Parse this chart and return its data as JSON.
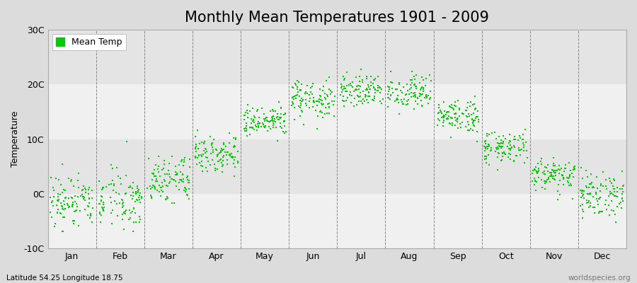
{
  "title": "Monthly Mean Temperatures 1901 - 2009",
  "ylabel": "Temperature",
  "xlabel_labels": [
    "Jan",
    "Feb",
    "Mar",
    "Apr",
    "May",
    "Jun",
    "Jul",
    "Aug",
    "Sep",
    "Oct",
    "Nov",
    "Dec"
  ],
  "vline_positions": [
    2,
    3,
    4,
    5,
    6,
    7,
    8,
    9,
    10,
    11,
    12
  ],
  "ylim": [
    -10,
    30
  ],
  "xlim": [
    1,
    13
  ],
  "ytick_labels": [
    "-10C",
    "0C",
    "10C",
    "20C",
    "30C"
  ],
  "ytick_values": [
    -10,
    0,
    10,
    20,
    30
  ],
  "dot_color": "#00cc00",
  "dot_size": 3,
  "legend_label": "Mean Temp",
  "bg_color": "#dcdcdc",
  "plot_bg_color_light": "#f0f0f0",
  "plot_bg_color_dark": "#e4e4e4",
  "footnote_left": "Latitude 54.25 Longitude 18.75",
  "footnote_right": "worldspecies.org",
  "title_fontsize": 15,
  "axis_fontsize": 9,
  "tick_fontsize": 9,
  "monthly_means": [
    -1.5,
    -1.2,
    2.5,
    7.5,
    13.0,
    17.0,
    19.0,
    18.5,
    14.0,
    8.5,
    3.5,
    0.0
  ],
  "monthly_stds": [
    2.8,
    2.8,
    2.0,
    1.6,
    1.5,
    1.8,
    1.5,
    1.5,
    1.5,
    1.5,
    1.5,
    2.0
  ],
  "n_years": 109,
  "rand_seed": 42
}
